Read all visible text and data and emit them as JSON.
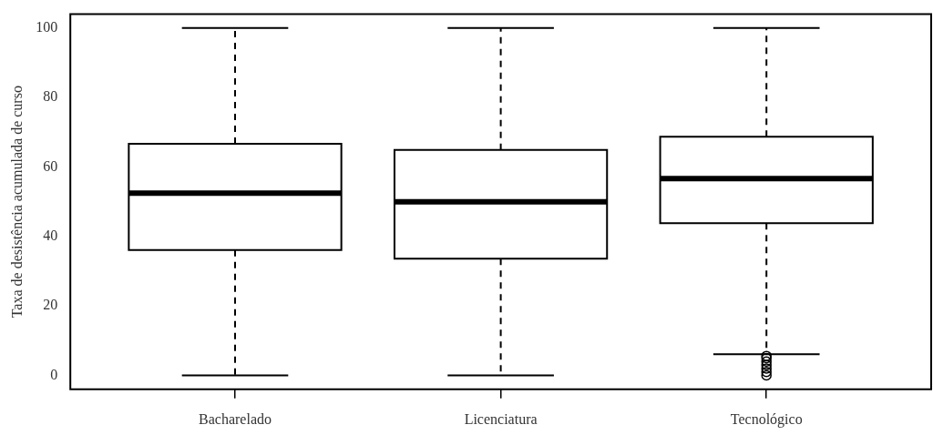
{
  "chart_data": {
    "type": "box",
    "ylabel": "Taxa de desistência acumulada de curso",
    "categories": [
      "Bacharelado",
      "Licenciatura",
      "Tecnológico"
    ],
    "boxes": [
      {
        "low": 0,
        "q1": 36.1,
        "median": 52.5,
        "q3": 66.7,
        "high": 100
      },
      {
        "low": 0,
        "q1": 33.6,
        "median": 50.0,
        "q3": 64.9,
        "high": 100
      },
      {
        "low": 6.1,
        "q1": 43.8,
        "median": 56.7,
        "q3": 68.7,
        "high": 100,
        "outliers": [
          0,
          1,
          2,
          3,
          4,
          5,
          5.6
        ]
      }
    ],
    "ylim": [
      -4,
      104
    ],
    "yticks": [
      0,
      20,
      40,
      60,
      80,
      100
    ]
  }
}
